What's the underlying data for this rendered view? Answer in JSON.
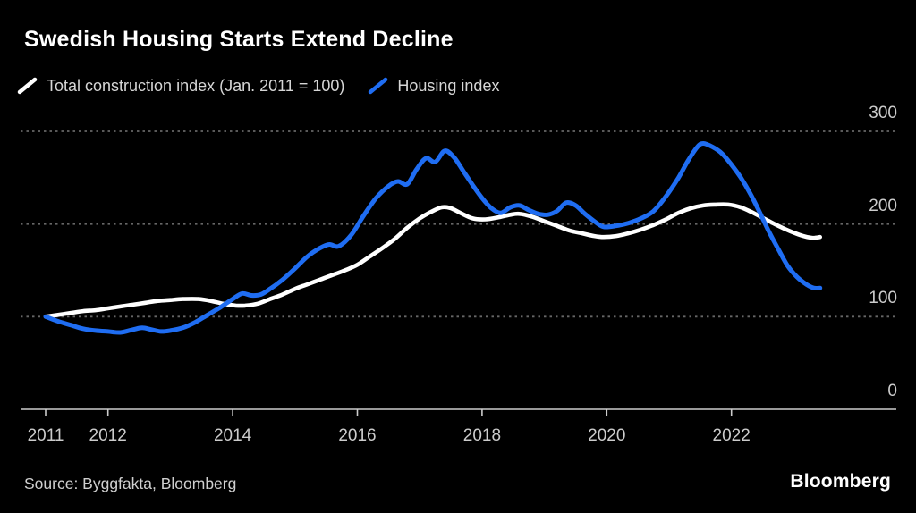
{
  "header": {
    "title": "Swedish Housing Starts Extend Decline"
  },
  "legend": [
    {
      "label": "Total construction index (Jan. 2011 = 100)",
      "color": "#ffffff"
    },
    {
      "label": "Housing index",
      "color": "#1f6df2"
    }
  ],
  "footer": {
    "source": "Source: Byggfakta, Bloomberg",
    "brand": "Bloomberg"
  },
  "colors": {
    "background": "#000000",
    "title": "#ffffff",
    "legend_text": "#d6d6d6",
    "tick_text": "#cccccc",
    "gridline": "#666666",
    "axis": "#cccccc",
    "series_total": "#ffffff",
    "series_housing": "#1f6df2"
  },
  "chart_data": {
    "type": "line",
    "title": "Swedish Housing Starts Extend Decline",
    "xlabel": "",
    "ylabel": "",
    "x_ticks": [
      2011,
      2012,
      2014,
      2016,
      2018,
      2020,
      2022
    ],
    "y_ticks": [
      0,
      100,
      200,
      300
    ],
    "ylim": [
      0,
      300
    ],
    "xlim_years": [
      2010.6,
      2024.6
    ],
    "grid": "horizontal-dotted",
    "legend_position": "top",
    "series": [
      {
        "name": "Total construction index (Jan. 2011 = 100)",
        "color": "#ffffff",
        "points": [
          [
            2011.0,
            100
          ],
          [
            2011.2,
            102
          ],
          [
            2011.4,
            104
          ],
          [
            2011.6,
            106
          ],
          [
            2011.8,
            107
          ],
          [
            2012.0,
            109
          ],
          [
            2012.2,
            111
          ],
          [
            2012.4,
            113
          ],
          [
            2012.6,
            115
          ],
          [
            2012.8,
            117
          ],
          [
            2013.0,
            118
          ],
          [
            2013.2,
            119
          ],
          [
            2013.45,
            119
          ],
          [
            2013.65,
            117
          ],
          [
            2013.85,
            114
          ],
          [
            2014.05,
            112
          ],
          [
            2014.2,
            112
          ],
          [
            2014.4,
            114
          ],
          [
            2014.6,
            119
          ],
          [
            2014.8,
            124
          ],
          [
            2015.0,
            130
          ],
          [
            2015.2,
            135
          ],
          [
            2015.4,
            140
          ],
          [
            2015.6,
            145
          ],
          [
            2015.8,
            150
          ],
          [
            2016.0,
            156
          ],
          [
            2016.2,
            165
          ],
          [
            2016.4,
            174
          ],
          [
            2016.6,
            184
          ],
          [
            2016.8,
            196
          ],
          [
            2017.0,
            206
          ],
          [
            2017.15,
            212
          ],
          [
            2017.35,
            218
          ],
          [
            2017.5,
            217
          ],
          [
            2017.65,
            212
          ],
          [
            2017.85,
            206
          ],
          [
            2018.05,
            205
          ],
          [
            2018.25,
            207
          ],
          [
            2018.45,
            210
          ],
          [
            2018.6,
            211
          ],
          [
            2018.8,
            208
          ],
          [
            2019.0,
            203
          ],
          [
            2019.2,
            198
          ],
          [
            2019.4,
            193
          ],
          [
            2019.6,
            190
          ],
          [
            2019.8,
            187
          ],
          [
            2019.95,
            186
          ],
          [
            2020.15,
            187
          ],
          [
            2020.35,
            190
          ],
          [
            2020.55,
            194
          ],
          [
            2020.75,
            199
          ],
          [
            2020.95,
            205
          ],
          [
            2021.15,
            212
          ],
          [
            2021.35,
            217
          ],
          [
            2021.55,
            220
          ],
          [
            2021.75,
            221
          ],
          [
            2021.95,
            221
          ],
          [
            2022.15,
            218
          ],
          [
            2022.35,
            212
          ],
          [
            2022.55,
            205
          ],
          [
            2022.75,
            198
          ],
          [
            2022.95,
            192
          ],
          [
            2023.15,
            187
          ],
          [
            2023.3,
            185
          ],
          [
            2023.42,
            186
          ]
        ]
      },
      {
        "name": "Housing index",
        "color": "#1f6df2",
        "points": [
          [
            2011.0,
            100
          ],
          [
            2011.2,
            95
          ],
          [
            2011.4,
            91
          ],
          [
            2011.6,
            87
          ],
          [
            2011.8,
            85
          ],
          [
            2012.0,
            84
          ],
          [
            2012.2,
            83
          ],
          [
            2012.4,
            86
          ],
          [
            2012.55,
            88
          ],
          [
            2012.7,
            86
          ],
          [
            2012.85,
            84
          ],
          [
            2013.0,
            85
          ],
          [
            2013.2,
            88
          ],
          [
            2013.4,
            94
          ],
          [
            2013.6,
            102
          ],
          [
            2013.8,
            110
          ],
          [
            2014.0,
            119
          ],
          [
            2014.15,
            125
          ],
          [
            2014.3,
            123
          ],
          [
            2014.45,
            124
          ],
          [
            2014.6,
            130
          ],
          [
            2014.8,
            140
          ],
          [
            2015.0,
            152
          ],
          [
            2015.2,
            165
          ],
          [
            2015.4,
            174
          ],
          [
            2015.55,
            178
          ],
          [
            2015.7,
            176
          ],
          [
            2015.9,
            188
          ],
          [
            2016.1,
            209
          ],
          [
            2016.3,
            228
          ],
          [
            2016.5,
            241
          ],
          [
            2016.65,
            246
          ],
          [
            2016.8,
            243
          ],
          [
            2016.95,
            259
          ],
          [
            2017.1,
            271
          ],
          [
            2017.25,
            267
          ],
          [
            2017.4,
            279
          ],
          [
            2017.55,
            272
          ],
          [
            2017.7,
            257
          ],
          [
            2017.85,
            242
          ],
          [
            2018.0,
            228
          ],
          [
            2018.15,
            217
          ],
          [
            2018.3,
            212
          ],
          [
            2018.45,
            218
          ],
          [
            2018.6,
            220
          ],
          [
            2018.75,
            215
          ],
          [
            2018.9,
            211
          ],
          [
            2019.05,
            210
          ],
          [
            2019.2,
            214
          ],
          [
            2019.35,
            223
          ],
          [
            2019.5,
            220
          ],
          [
            2019.65,
            211
          ],
          [
            2019.8,
            203
          ],
          [
            2019.95,
            197
          ],
          [
            2020.15,
            198
          ],
          [
            2020.35,
            201
          ],
          [
            2020.55,
            206
          ],
          [
            2020.75,
            214
          ],
          [
            2020.95,
            230
          ],
          [
            2021.15,
            250
          ],
          [
            2021.3,
            268
          ],
          [
            2021.45,
            283
          ],
          [
            2021.55,
            287
          ],
          [
            2021.7,
            283
          ],
          [
            2021.85,
            276
          ],
          [
            2022.0,
            264
          ],
          [
            2022.15,
            250
          ],
          [
            2022.3,
            233
          ],
          [
            2022.45,
            213
          ],
          [
            2022.6,
            192
          ],
          [
            2022.75,
            173
          ],
          [
            2022.9,
            155
          ],
          [
            2023.05,
            143
          ],
          [
            2023.2,
            135
          ],
          [
            2023.32,
            131
          ],
          [
            2023.42,
            131
          ]
        ]
      }
    ]
  }
}
